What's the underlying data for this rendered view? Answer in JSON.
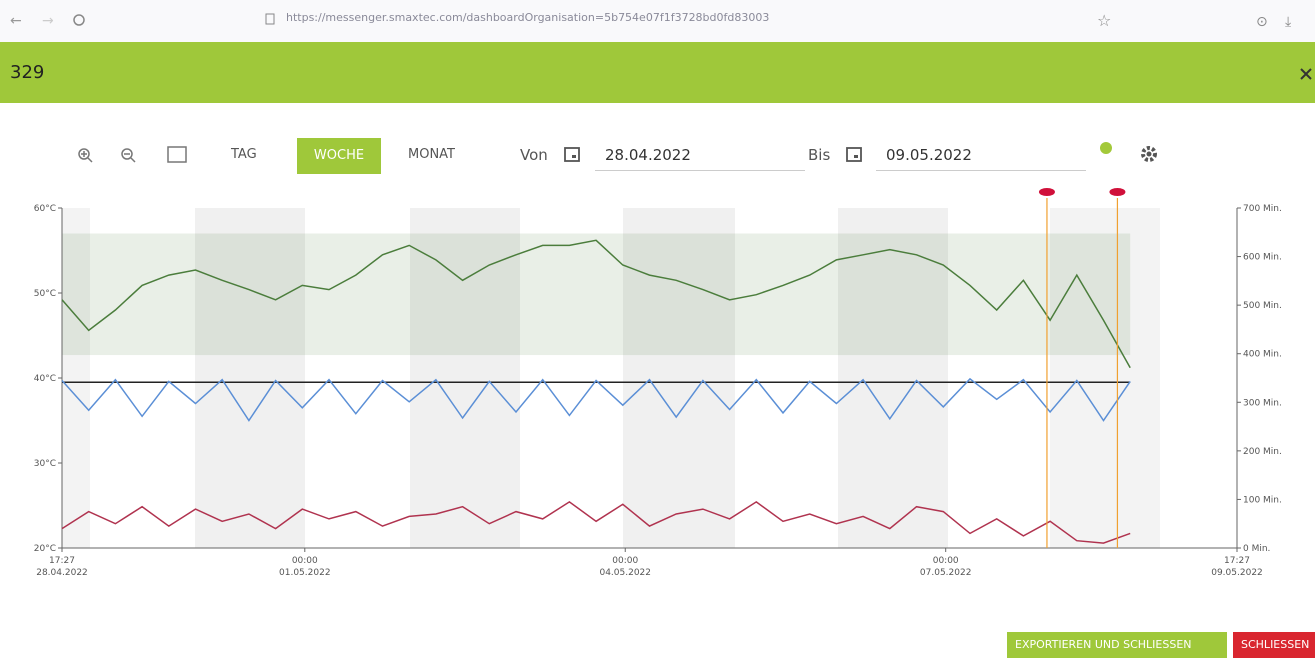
{
  "browser": {
    "url": "https://messenger.smaxtec.com/dashboardOrganisation=5b754e07f1f3728bd0fd83003"
  },
  "header": {
    "title": "329"
  },
  "toolbar": {
    "views": [
      "TAG",
      "WOCHE",
      "MONAT"
    ],
    "from_label": "Von",
    "from_date": "28.04.2022",
    "to_label": "Bis",
    "to_date": "09.05.2022"
  },
  "buttons": [
    "EXPORTIEREN UND SCHLIESSEN",
    "SCHLIESSEN"
  ],
  "chart_data": {
    "type": "line",
    "xlim": [
      "2022-04-28T17:27",
      "2022-05-09T17:27"
    ],
    "xticks": [
      {
        "value": "2022-04-28T17:27",
        "label": [
          "17:27",
          "28.04.2022"
        ]
      },
      {
        "value": "2022-05-01T00:00",
        "label": [
          "00:00",
          "01.05.2022"
        ]
      },
      {
        "value": "2022-05-04T00:00",
        "label": [
          "00:00",
          "04.05.2022"
        ]
      },
      {
        "value": "2022-05-07T00:00",
        "label": [
          "00:00",
          "07.05.2022"
        ]
      },
      {
        "value": "2022-05-09T17:27",
        "label": [
          "17:27",
          "09.05.2022"
        ]
      }
    ],
    "ylim": [
      20,
      60
    ],
    "yticks": [
      {
        "value": 20,
        "label": "20°C"
      },
      {
        "value": 30,
        "label": "30°C"
      },
      {
        "value": 40,
        "label": "40°C"
      },
      {
        "value": 50,
        "label": "50°C"
      },
      {
        "value": 60,
        "label": "60°C"
      }
    ],
    "y2lim": [
      0,
      700
    ],
    "y2ticks": [
      {
        "value": 0,
        "label": "0 Min."
      },
      {
        "value": 100,
        "label": "100 Min."
      },
      {
        "value": 200,
        "label": "200 Min."
      },
      {
        "value": 300,
        "label": "300 Min."
      },
      {
        "value": 400,
        "label": "400 Min."
      },
      {
        "value": 500,
        "label": "500 Min."
      },
      {
        "value": 600,
        "label": "600 Min."
      },
      {
        "value": 700,
        "label": "700 Min."
      }
    ],
    "band": [
      42.7,
      57
    ],
    "threshold": 39.5,
    "events": [
      "2022-05-07T22:45",
      "2022-05-08T14:35"
    ],
    "x": [
      "2022-04-28T17:27",
      "2022-04-28T23:27",
      "2022-04-29T05:27",
      "2022-04-29T11:27",
      "2022-04-29T17:27",
      "2022-04-29T23:27",
      "2022-04-30T05:27",
      "2022-04-30T11:27",
      "2022-04-30T17:27",
      "2022-04-30T23:27",
      "2022-05-01T05:27",
      "2022-05-01T11:27",
      "2022-05-01T17:27",
      "2022-05-01T23:27",
      "2022-05-02T05:27",
      "2022-05-02T11:27",
      "2022-05-02T17:27",
      "2022-05-02T23:27",
      "2022-05-03T05:27",
      "2022-05-03T11:27",
      "2022-05-03T17:27",
      "2022-05-03T23:27",
      "2022-05-04T05:27",
      "2022-05-04T11:27",
      "2022-05-04T17:27",
      "2022-05-04T23:27",
      "2022-05-05T05:27",
      "2022-05-05T11:27",
      "2022-05-05T17:27",
      "2022-05-05T23:27",
      "2022-05-06T05:27",
      "2022-05-06T11:27",
      "2022-05-06T17:27",
      "2022-05-06T23:27",
      "2022-05-07T05:27",
      "2022-05-07T11:27",
      "2022-05-07T17:27",
      "2022-05-07T23:27",
      "2022-05-08T05:27",
      "2022-05-08T11:27",
      "2022-05-08T17:27"
    ],
    "series": [
      {
        "color": "#4b7d3c",
        "axis": "y",
        "values": [
          49.2,
          45.6,
          48,
          50.9,
          52.1,
          52.7,
          51.5,
          50.4,
          49.2,
          50.9,
          50.4,
          52.1,
          54.5,
          55.6,
          53.9,
          51.5,
          53.3,
          54.5,
          55.6,
          55.6,
          56.2,
          53.3,
          52.1,
          51.5,
          50.4,
          49.2,
          49.8,
          50.9,
          52.1,
          53.9,
          54.5,
          55.1,
          54.5,
          53.3,
          50.9,
          48,
          51.5,
          46.8,
          52.1,
          46.8,
          41.2
        ]
      },
      {
        "color": "#5b8fd6",
        "axis": "y",
        "values": [
          39.7,
          36.2,
          39.8,
          35.5,
          39.6,
          37.0,
          39.8,
          35.0,
          39.7,
          36.5,
          39.8,
          35.8,
          39.7,
          37.2,
          39.8,
          35.3,
          39.6,
          36.0,
          39.8,
          35.6,
          39.7,
          36.8,
          39.8,
          35.4,
          39.7,
          36.3,
          39.8,
          35.9,
          39.6,
          37.0,
          39.8,
          35.2,
          39.7,
          36.6,
          39.9,
          37.5,
          39.8,
          36.0,
          39.7,
          35.0,
          39.6
        ]
      },
      {
        "color": "#b0334f",
        "axis": "y2",
        "values": [
          40,
          75,
          50,
          85,
          45,
          80,
          55,
          70,
          40,
          80,
          60,
          75,
          45,
          65,
          70,
          85,
          50,
          75,
          60,
          95,
          55,
          90,
          45,
          70,
          80,
          60,
          95,
          55,
          70,
          50,
          65,
          40,
          85,
          75,
          30,
          60,
          25,
          55,
          15,
          10,
          30
        ]
      }
    ]
  }
}
